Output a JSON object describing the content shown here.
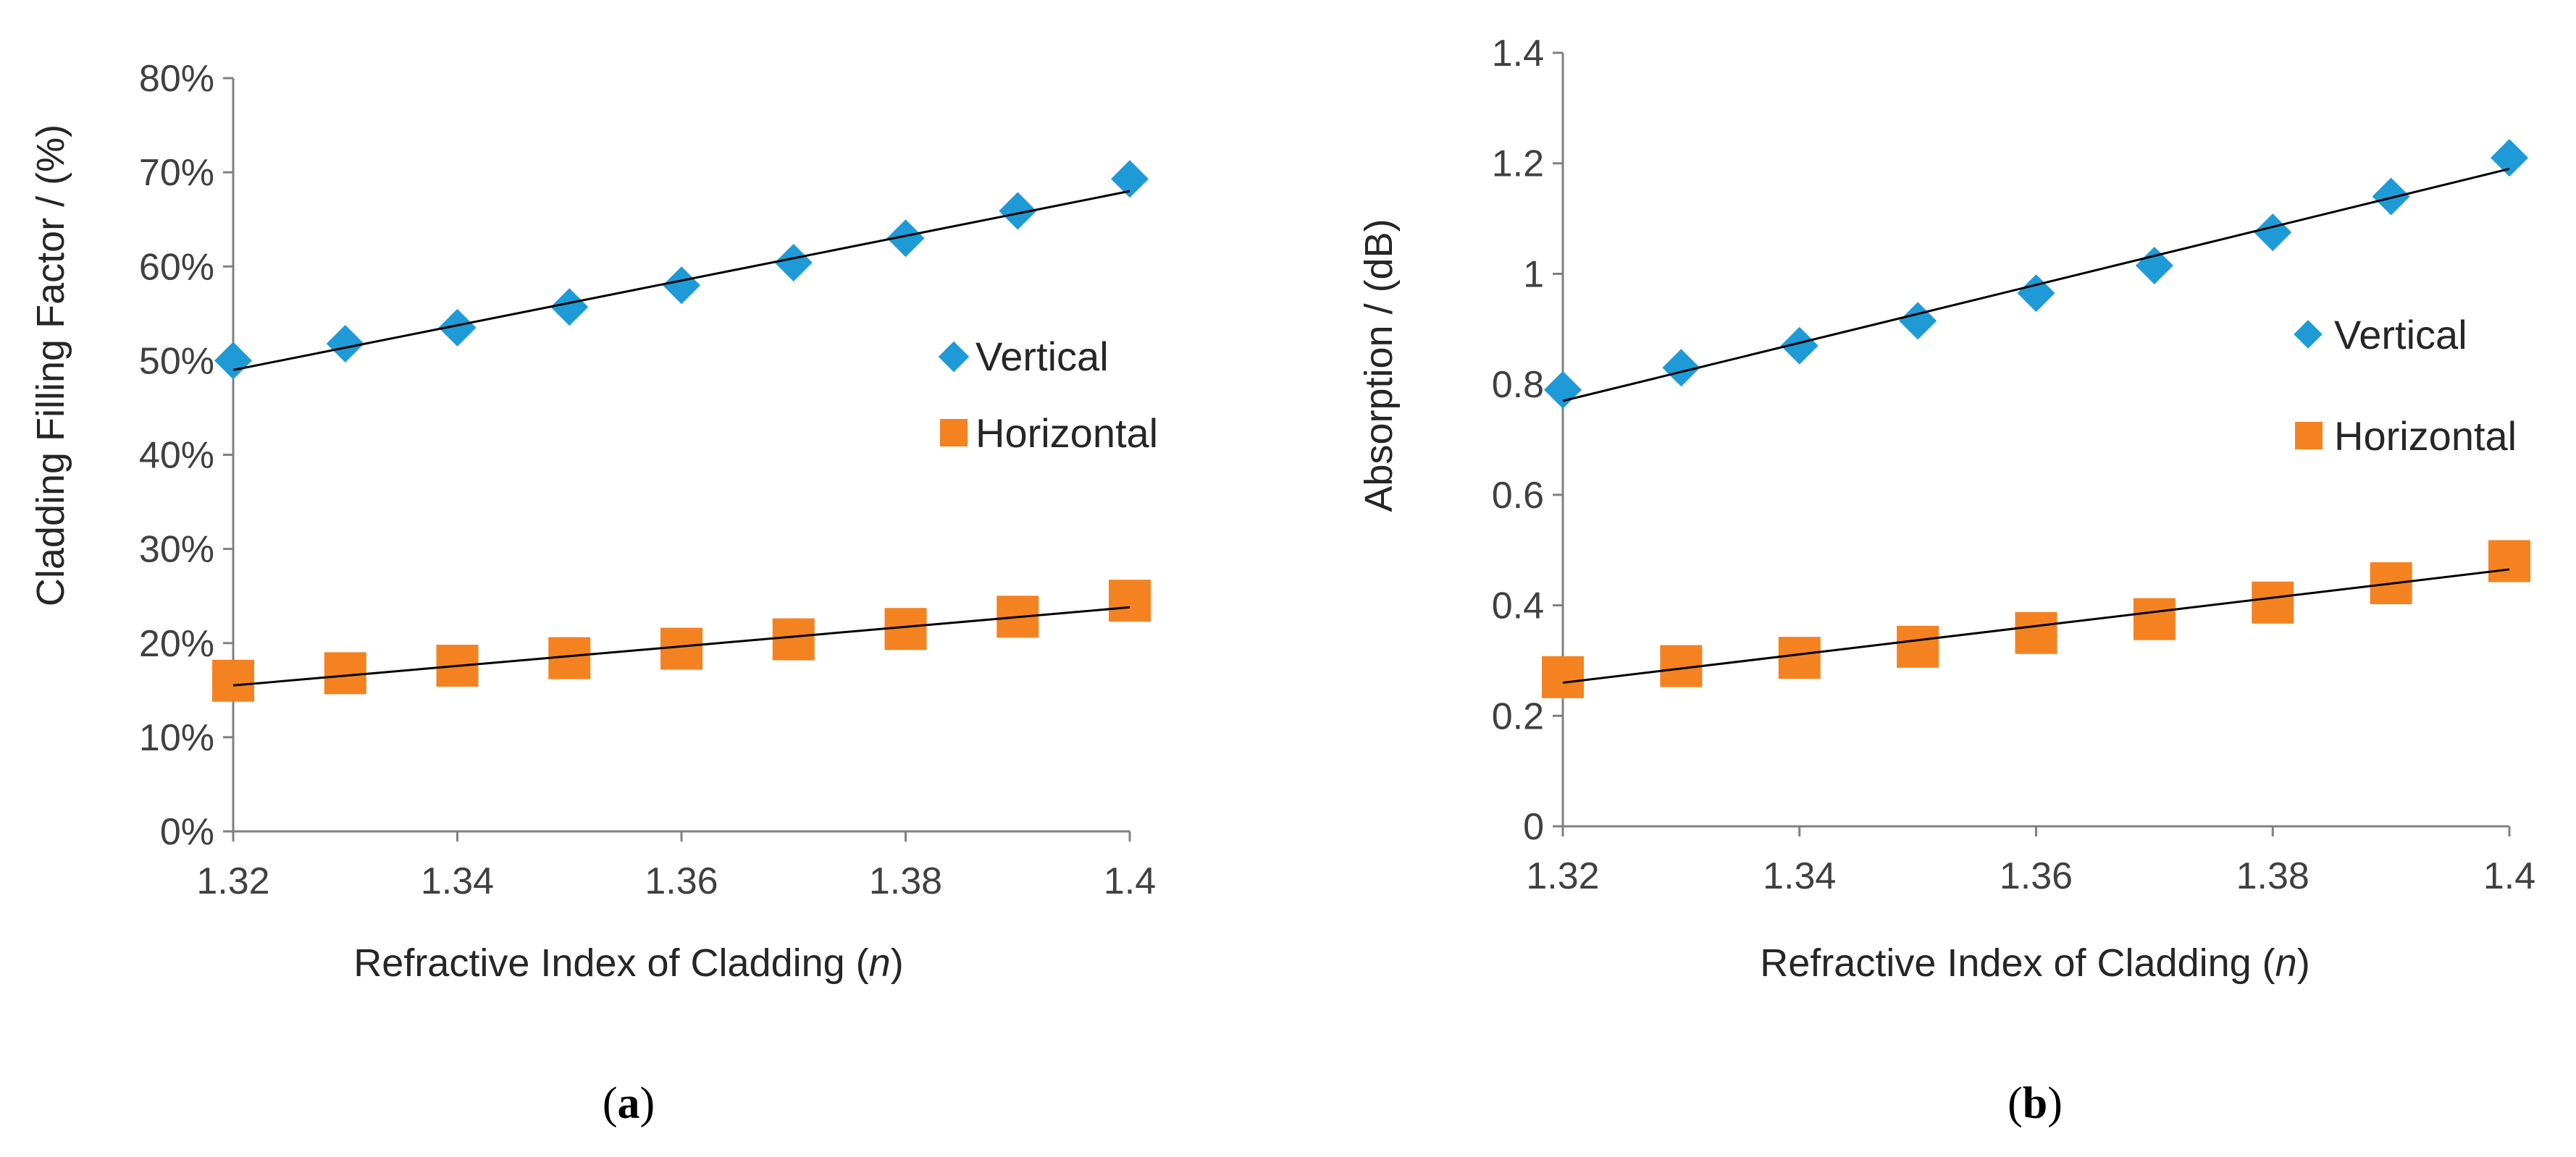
{
  "chart_data": [
    {
      "type": "scatter",
      "panel_label": "a",
      "caption": "(a)",
      "ylabel": "Cladding Filling Factor / (%)",
      "xlabel_prefix": "Refractive Index of Cladding (",
      "xlabel_var": "n",
      "xlabel_suffix": ")",
      "xlim": [
        1.32,
        1.4
      ],
      "ylim": [
        0,
        80
      ],
      "x_ticks": [
        1.32,
        1.34,
        1.36,
        1.38,
        1.4
      ],
      "x_tick_labels": [
        "1.32",
        "1.34",
        "1.36",
        "1.38",
        "1.4"
      ],
      "y_ticks": [
        0,
        10,
        20,
        30,
        40,
        50,
        60,
        70,
        80
      ],
      "y_tick_labels": [
        "0%",
        "10%",
        "20%",
        "30%",
        "40%",
        "50%",
        "60%",
        "70%",
        "80%"
      ],
      "grid": false,
      "legend_position": "right",
      "x": [
        1.32,
        1.33,
        1.34,
        1.35,
        1.36,
        1.37,
        1.38,
        1.39,
        1.4
      ],
      "series": [
        {
          "name": "Vertical",
          "marker": "diamond",
          "color": "#1E9BD7",
          "values": [
            50.0,
            51.8,
            53.5,
            55.7,
            58.0,
            60.4,
            63.0,
            65.9,
            69.3
          ],
          "trendline": [
            49.0,
            68.0
          ]
        },
        {
          "name": "Horizontal",
          "marker": "square",
          "color": "#F58220",
          "values": [
            16.0,
            16.8,
            17.6,
            18.4,
            19.4,
            20.4,
            21.5,
            22.8,
            24.5
          ],
          "trendline": [
            15.5,
            23.8
          ]
        }
      ]
    },
    {
      "type": "scatter",
      "panel_label": "b",
      "caption": "(b)",
      "ylabel": "Absorption / (dB)",
      "xlabel_prefix": "Refractive Index of Cladding (",
      "xlabel_var": "n",
      "xlabel_suffix": ")",
      "xlim": [
        1.32,
        1.4
      ],
      "ylim": [
        0,
        1.4
      ],
      "x_ticks": [
        1.32,
        1.34,
        1.36,
        1.38,
        1.4
      ],
      "x_tick_labels": [
        "1.32",
        "1.34",
        "1.36",
        "1.38",
        "1.4"
      ],
      "y_ticks": [
        0,
        0.2,
        0.4,
        0.6,
        0.8,
        1,
        1.2,
        1.4
      ],
      "y_tick_labels": [
        "0",
        "0.2",
        "0.4",
        "0.6",
        "0.8",
        "1",
        "1.2",
        "1.4"
      ],
      "grid": false,
      "legend_position": "right",
      "x": [
        1.32,
        1.33,
        1.34,
        1.35,
        1.36,
        1.37,
        1.38,
        1.39,
        1.4
      ],
      "series": [
        {
          "name": "Vertical",
          "marker": "diamond",
          "color": "#1E9BD7",
          "values": [
            0.79,
            0.83,
            0.87,
            0.915,
            0.965,
            1.015,
            1.075,
            1.14,
            1.21
          ],
          "trendline": [
            0.77,
            1.19
          ]
        },
        {
          "name": "Horizontal",
          "marker": "square",
          "color": "#F58220",
          "values": [
            0.27,
            0.29,
            0.305,
            0.325,
            0.35,
            0.375,
            0.405,
            0.44,
            0.48
          ],
          "trendline": [
            0.26,
            0.465
          ]
        }
      ]
    }
  ]
}
